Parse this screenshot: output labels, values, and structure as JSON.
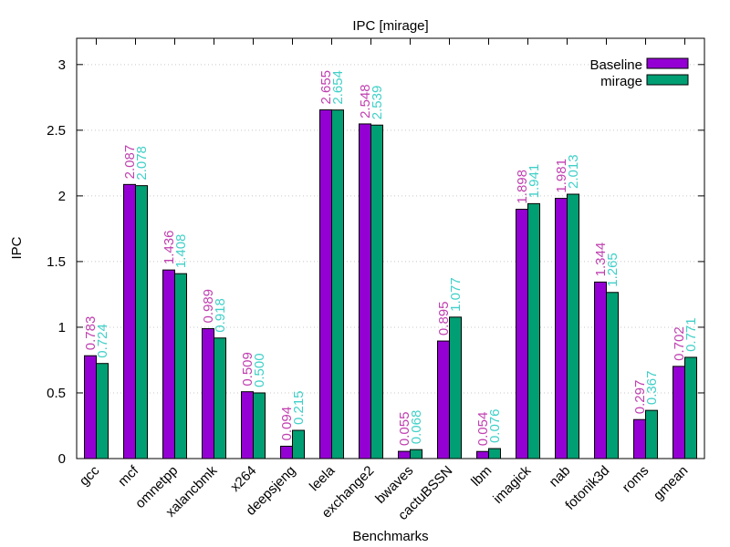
{
  "colors": {
    "baseline": "#9400d3",
    "mirage": "#009e73",
    "baseline_label": "#c040b0",
    "mirage_label": "#40d0c8",
    "grid": "#c8c8c8",
    "axis": "#000000"
  },
  "chart_data": {
    "type": "bar",
    "title": "IPC [mirage]",
    "xlabel": "Benchmarks",
    "ylabel": "IPC",
    "ylim": [
      0,
      3.2
    ],
    "yticks": [
      "0",
      "0.5",
      "1",
      "1.5",
      "2",
      "2.5",
      "3"
    ],
    "grid": "horizontal dotted",
    "legend_position": "top-right",
    "categories": [
      "gcc",
      "mcf",
      "omnetpp",
      "xalancbmk",
      "x264",
      "deepsjeng",
      "leela",
      "exchange2",
      "bwaves",
      "cactuBSSN",
      "lbm",
      "imagick",
      "nab",
      "fotonik3d",
      "roms",
      "gmean"
    ],
    "series": [
      {
        "name": "Baseline",
        "values": [
          0.783,
          2.087,
          1.436,
          0.989,
          0.509,
          0.094,
          2.655,
          2.548,
          0.055,
          0.895,
          0.054,
          1.898,
          1.981,
          1.344,
          0.297,
          0.702
        ],
        "labels": [
          "0.783",
          "2.087",
          "1.436",
          "0.989",
          "0.509",
          "0.094",
          "2.655",
          "2.548",
          "0.055",
          "0.895",
          "0.054",
          "1.898",
          "1.981",
          "1.344",
          "0.297",
          "0.702"
        ]
      },
      {
        "name": "mirage",
        "values": [
          0.724,
          2.078,
          1.408,
          0.918,
          0.5,
          0.215,
          2.654,
          2.539,
          0.068,
          1.077,
          0.076,
          1.941,
          2.013,
          1.265,
          0.367,
          0.771
        ],
        "labels": [
          "0.724",
          "2.078",
          "1.408",
          "0.918",
          "0.500",
          "0.215",
          "2.654",
          "2.539",
          "0.068",
          "1.077",
          "0.076",
          "1.941",
          "2.013",
          "1.265",
          "0.367",
          "0.771"
        ]
      }
    ]
  }
}
